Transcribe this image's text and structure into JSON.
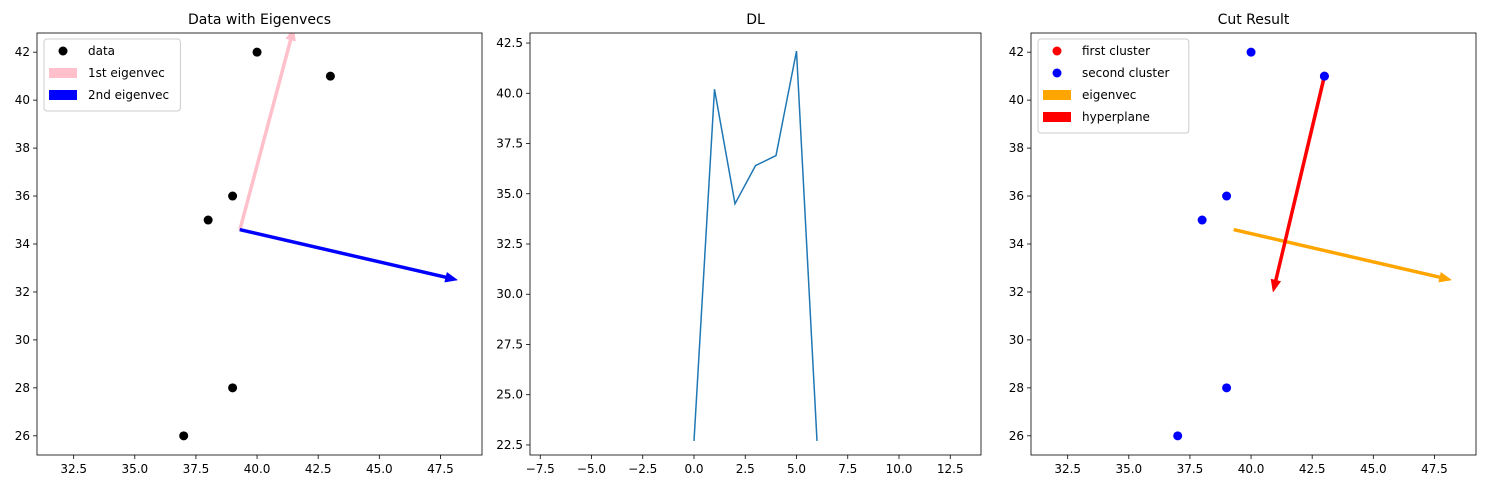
{
  "chart_data": [
    {
      "type": "scatter",
      "title": "Data with Eigenvecs",
      "xlim": [
        31.0,
        49.2
      ],
      "ylim": [
        25.2,
        42.8
      ],
      "xticks": [
        "32.5",
        "35.0",
        "37.5",
        "40.0",
        "42.5",
        "45.0",
        "47.5"
      ],
      "yticks": [
        "26",
        "28",
        "30",
        "32",
        "34",
        "36",
        "38",
        "40",
        "42"
      ],
      "points": [
        [
          37,
          26
        ],
        [
          38,
          35
        ],
        [
          39,
          28
        ],
        [
          39,
          36
        ],
        [
          40,
          42
        ],
        [
          43,
          41
        ]
      ],
      "arrows": [
        {
          "name": "1st eigenvec",
          "from": [
            39.3,
            34.6
          ],
          "to": [
            41.5,
            43.0
          ],
          "color": "#ffc0cb"
        },
        {
          "name": "2nd eigenvec",
          "from": [
            39.3,
            34.6
          ],
          "to": [
            48.2,
            32.5
          ],
          "color": "#0000ff"
        }
      ],
      "legend": {
        "position": "upper-left",
        "items": [
          {
            "label": "data",
            "kind": "dot",
            "color": "#000000"
          },
          {
            "label": "1st eigenvec",
            "kind": "patch",
            "color": "#ffc0cb"
          },
          {
            "label": "2nd eigenvec",
            "kind": "patch",
            "color": "#0000ff"
          }
        ]
      }
    },
    {
      "type": "line",
      "title": "DL",
      "xlim": [
        -8.0,
        14.0
      ],
      "ylim": [
        22.0,
        43.0
      ],
      "xticks": [
        "−7.5",
        "−5.0",
        "−2.5",
        "0.0",
        "2.5",
        "5.0",
        "7.5",
        "10.0",
        "12.5"
      ],
      "yticks": [
        "22.5",
        "25.0",
        "27.5",
        "30.0",
        "32.5",
        "35.0",
        "37.5",
        "40.0",
        "42.5"
      ],
      "x": [
        0,
        1,
        2,
        3,
        4,
        5,
        6
      ],
      "y": [
        22.7,
        40.2,
        34.5,
        36.4,
        36.9,
        42.1,
        22.7
      ],
      "color": "#1f77b4"
    },
    {
      "type": "scatter",
      "title": "Cut Result",
      "xlim": [
        31.0,
        49.2
      ],
      "ylim": [
        25.2,
        42.8
      ],
      "xticks": [
        "32.5",
        "35.0",
        "37.5",
        "40.0",
        "42.5",
        "45.0",
        "47.5"
      ],
      "yticks": [
        "26",
        "28",
        "30",
        "32",
        "34",
        "36",
        "38",
        "40",
        "42"
      ],
      "series": [
        {
          "name": "first cluster",
          "color": "#ff0000",
          "points": [
            [
              43,
              41
            ]
          ]
        },
        {
          "name": "second cluster",
          "color": "#0000ff",
          "points": [
            [
              37,
              26
            ],
            [
              38,
              35
            ],
            [
              39,
              28
            ],
            [
              39,
              36
            ],
            [
              40,
              42
            ],
            [
              43,
              41
            ]
          ]
        }
      ],
      "arrows": [
        {
          "name": "eigenvec",
          "from": [
            39.3,
            34.6
          ],
          "to": [
            48.2,
            32.5
          ],
          "color": "#ffa500"
        },
        {
          "name": "hyperplane",
          "from": [
            43.0,
            41.0
          ],
          "to": [
            40.9,
            32.0
          ],
          "color": "#ff0000"
        }
      ],
      "legend": {
        "position": "upper-left",
        "items": [
          {
            "label": "first cluster",
            "kind": "dot",
            "color": "#ff0000"
          },
          {
            "label": "second cluster",
            "kind": "dot",
            "color": "#0000ff"
          },
          {
            "label": "eigenvec",
            "kind": "patch",
            "color": "#ffa500"
          },
          {
            "label": "hyperplane",
            "kind": "patch",
            "color": "#ff0000"
          }
        ]
      }
    }
  ]
}
